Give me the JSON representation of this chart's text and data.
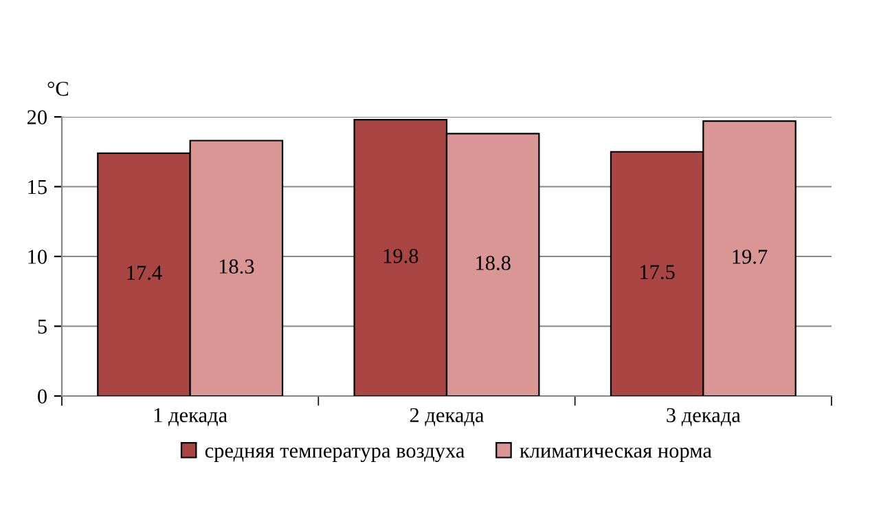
{
  "chart_data": {
    "type": "bar",
    "ylabel": "°C",
    "categories": [
      "1 декада",
      "2 декада",
      "3 декада"
    ],
    "series": [
      {
        "name": "средняя температура воздуха",
        "color": "#a94643",
        "values": [
          17.4,
          19.8,
          17.5
        ]
      },
      {
        "name": "климатическая норма",
        "color": "#d99694",
        "values": [
          18.3,
          18.8,
          19.7
        ]
      }
    ],
    "ylim": [
      0,
      20
    ],
    "yticks": [
      0,
      5,
      10,
      15,
      20
    ],
    "grid": "y",
    "legend": "bottom",
    "data_labels": true
  }
}
